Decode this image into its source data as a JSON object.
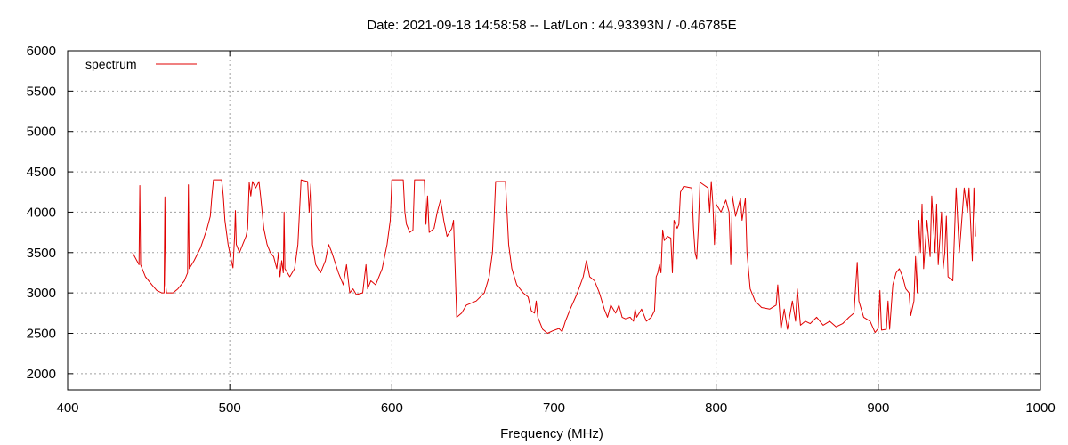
{
  "chart_data": {
    "type": "line",
    "title": "Date: 2021-09-18 14:58:58  --  Lat/Lon : 44.93393N / -0.46785E",
    "xlabel": "Frequency (MHz)",
    "ylabel": "",
    "xlim": [
      400,
      1000
    ],
    "ylim": [
      1800,
      6000
    ],
    "x_ticks": [
      400,
      500,
      600,
      700,
      800,
      900,
      1000
    ],
    "y_ticks": [
      2000,
      2500,
      3000,
      3500,
      4000,
      4500,
      5000,
      5500,
      6000
    ],
    "grid": true,
    "legend_position": "top-left",
    "series": [
      {
        "name": "spectrum",
        "color": "#e00000",
        "points": [
          [
            440,
            3500
          ],
          [
            444,
            3350
          ],
          [
            444.5,
            4330
          ],
          [
            445,
            3350
          ],
          [
            448,
            3200
          ],
          [
            452,
            3100
          ],
          [
            455,
            3030
          ],
          [
            458,
            3000
          ],
          [
            459.5,
            3000
          ],
          [
            460,
            4190
          ],
          [
            460.5,
            3100
          ],
          [
            461,
            3000
          ],
          [
            465,
            3000
          ],
          [
            468,
            3050
          ],
          [
            472,
            3150
          ],
          [
            474,
            3250
          ],
          [
            474.5,
            4340
          ],
          [
            475,
            3300
          ],
          [
            478,
            3400
          ],
          [
            482,
            3560
          ],
          [
            486,
            3800
          ],
          [
            488,
            3950
          ],
          [
            489,
            4200
          ],
          [
            490,
            4400
          ],
          [
            495,
            4400
          ],
          [
            496,
            4200
          ],
          [
            497,
            3900
          ],
          [
            499,
            3600
          ],
          [
            501,
            3400
          ],
          [
            502,
            3310
          ],
          [
            503,
            3700
          ],
          [
            503.5,
            4020
          ],
          [
            504,
            3600
          ],
          [
            506,
            3500
          ],
          [
            508,
            3600
          ],
          [
            510,
            3700
          ],
          [
            511,
            3800
          ],
          [
            512,
            4370
          ],
          [
            513,
            4200
          ],
          [
            514,
            4380
          ],
          [
            516,
            4300
          ],
          [
            518,
            4380
          ],
          [
            519,
            4200
          ],
          [
            520,
            4000
          ],
          [
            521,
            3800
          ],
          [
            523,
            3600
          ],
          [
            525,
            3500
          ],
          [
            527,
            3450
          ],
          [
            529,
            3300
          ],
          [
            530,
            3500
          ],
          [
            531,
            3200
          ],
          [
            532,
            3400
          ],
          [
            533,
            3250
          ],
          [
            533.5,
            4000
          ],
          [
            534,
            3300
          ],
          [
            537,
            3200
          ],
          [
            540,
            3300
          ],
          [
            542,
            3600
          ],
          [
            543,
            4000
          ],
          [
            544,
            4400
          ],
          [
            548,
            4380
          ],
          [
            549,
            4000
          ],
          [
            550,
            4350
          ],
          [
            551,
            3600
          ],
          [
            553,
            3350
          ],
          [
            556,
            3250
          ],
          [
            559,
            3400
          ],
          [
            561,
            3600
          ],
          [
            563,
            3500
          ],
          [
            567,
            3250
          ],
          [
            570,
            3100
          ],
          [
            572,
            3350
          ],
          [
            574,
            3000
          ],
          [
            576,
            3050
          ],
          [
            578,
            2980
          ],
          [
            582,
            3000
          ],
          [
            584,
            3350
          ],
          [
            585,
            3050
          ],
          [
            587,
            3150
          ],
          [
            590,
            3100
          ],
          [
            594,
            3300
          ],
          [
            597,
            3600
          ],
          [
            599,
            3900
          ],
          [
            600,
            4400
          ],
          [
            607,
            4400
          ],
          [
            608,
            4000
          ],
          [
            609,
            3850
          ],
          [
            611,
            3750
          ],
          [
            613,
            3780
          ],
          [
            614,
            4400
          ],
          [
            620,
            4400
          ],
          [
            621,
            3850
          ],
          [
            622,
            4200
          ],
          [
            623,
            3750
          ],
          [
            626,
            3800
          ],
          [
            628,
            4000
          ],
          [
            630,
            4150
          ],
          [
            632,
            3900
          ],
          [
            634,
            3700
          ],
          [
            637,
            3800
          ],
          [
            638,
            3900
          ],
          [
            639,
            3300
          ],
          [
            640,
            2700
          ],
          [
            643,
            2750
          ],
          [
            646,
            2850
          ],
          [
            652,
            2900
          ],
          [
            657,
            3000
          ],
          [
            660,
            3200
          ],
          [
            662,
            3500
          ],
          [
            663,
            3900
          ],
          [
            664,
            4380
          ],
          [
            670,
            4380
          ],
          [
            671,
            4000
          ],
          [
            672,
            3600
          ],
          [
            674,
            3300
          ],
          [
            677,
            3100
          ],
          [
            681,
            3000
          ],
          [
            684,
            2950
          ],
          [
            686,
            2780
          ],
          [
            688,
            2750
          ],
          [
            689,
            2900
          ],
          [
            690,
            2700
          ],
          [
            693,
            2550
          ],
          [
            696,
            2500
          ],
          [
            699,
            2530
          ],
          [
            703,
            2560
          ],
          [
            705,
            2520
          ],
          [
            707,
            2650
          ],
          [
            710,
            2800
          ],
          [
            714,
            2980
          ],
          [
            718,
            3200
          ],
          [
            720,
            3400
          ],
          [
            722,
            3200
          ],
          [
            725,
            3150
          ],
          [
            728,
            3000
          ],
          [
            731,
            2800
          ],
          [
            733,
            2700
          ],
          [
            735,
            2850
          ],
          [
            738,
            2750
          ],
          [
            740,
            2850
          ],
          [
            742,
            2700
          ],
          [
            744,
            2680
          ],
          [
            747,
            2700
          ],
          [
            749,
            2650
          ],
          [
            750,
            2800
          ],
          [
            751,
            2700
          ],
          [
            754,
            2800
          ],
          [
            757,
            2650
          ],
          [
            760,
            2700
          ],
          [
            762,
            2780
          ],
          [
            763,
            3200
          ],
          [
            764,
            3250
          ],
          [
            765,
            3350
          ],
          [
            766,
            3250
          ],
          [
            767,
            3780
          ],
          [
            768,
            3650
          ],
          [
            770,
            3700
          ],
          [
            772,
            3680
          ],
          [
            773,
            3250
          ],
          [
            774,
            3900
          ],
          [
            776,
            3800
          ],
          [
            777,
            3850
          ],
          [
            778,
            4250
          ],
          [
            780,
            4320
          ],
          [
            785,
            4300
          ],
          [
            786,
            3800
          ],
          [
            787,
            3500
          ],
          [
            788,
            3420
          ],
          [
            789,
            3800
          ],
          [
            790,
            4370
          ],
          [
            795,
            4300
          ],
          [
            796,
            4000
          ],
          [
            797,
            4380
          ],
          [
            798,
            4100
          ],
          [
            799,
            3600
          ],
          [
            800,
            4100
          ],
          [
            803,
            4000
          ],
          [
            806,
            4150
          ],
          [
            808,
            4000
          ],
          [
            809,
            3350
          ],
          [
            810,
            4200
          ],
          [
            812,
            3950
          ],
          [
            815,
            4170
          ],
          [
            816,
            3900
          ],
          [
            818,
            4170
          ],
          [
            819,
            3500
          ],
          [
            821,
            3050
          ],
          [
            824,
            2900
          ],
          [
            828,
            2820
          ],
          [
            833,
            2800
          ],
          [
            837,
            2850
          ],
          [
            838,
            3100
          ],
          [
            840,
            2550
          ],
          [
            842,
            2800
          ],
          [
            844,
            2550
          ],
          [
            847,
            2900
          ],
          [
            849,
            2650
          ],
          [
            850,
            3050
          ],
          [
            852,
            2600
          ],
          [
            855,
            2650
          ],
          [
            858,
            2620
          ],
          [
            862,
            2700
          ],
          [
            866,
            2600
          ],
          [
            870,
            2650
          ],
          [
            874,
            2580
          ],
          [
            878,
            2620
          ],
          [
            882,
            2700
          ],
          [
            885,
            2750
          ],
          [
            887,
            3380
          ],
          [
            888,
            2900
          ],
          [
            891,
            2700
          ],
          [
            895,
            2650
          ],
          [
            898,
            2510
          ],
          [
            900,
            2560
          ],
          [
            901,
            3030
          ],
          [
            902,
            2540
          ],
          [
            905,
            2550
          ],
          [
            906,
            2900
          ],
          [
            907,
            2550
          ],
          [
            909,
            3100
          ],
          [
            911,
            3250
          ],
          [
            913,
            3300
          ],
          [
            915,
            3200
          ],
          [
            917,
            3050
          ],
          [
            919,
            3000
          ],
          [
            920,
            2720
          ],
          [
            922,
            2900
          ],
          [
            923,
            3450
          ],
          [
            924,
            3000
          ],
          [
            925,
            3900
          ],
          [
            926,
            3500
          ],
          [
            927,
            4100
          ],
          [
            928,
            3300
          ],
          [
            930,
            3900
          ],
          [
            932,
            3450
          ],
          [
            933,
            4200
          ],
          [
            935,
            3500
          ],
          [
            936,
            4100
          ],
          [
            937,
            3350
          ],
          [
            939,
            4000
          ],
          [
            940,
            3300
          ],
          [
            941,
            3500
          ],
          [
            942,
            3950
          ],
          [
            943,
            3200
          ],
          [
            946,
            3150
          ],
          [
            948,
            4300
          ],
          [
            950,
            3500
          ],
          [
            953,
            4300
          ],
          [
            955,
            4000
          ],
          [
            956,
            4300
          ],
          [
            958,
            3400
          ],
          [
            959,
            4300
          ],
          [
            960,
            3700
          ]
        ]
      }
    ]
  }
}
